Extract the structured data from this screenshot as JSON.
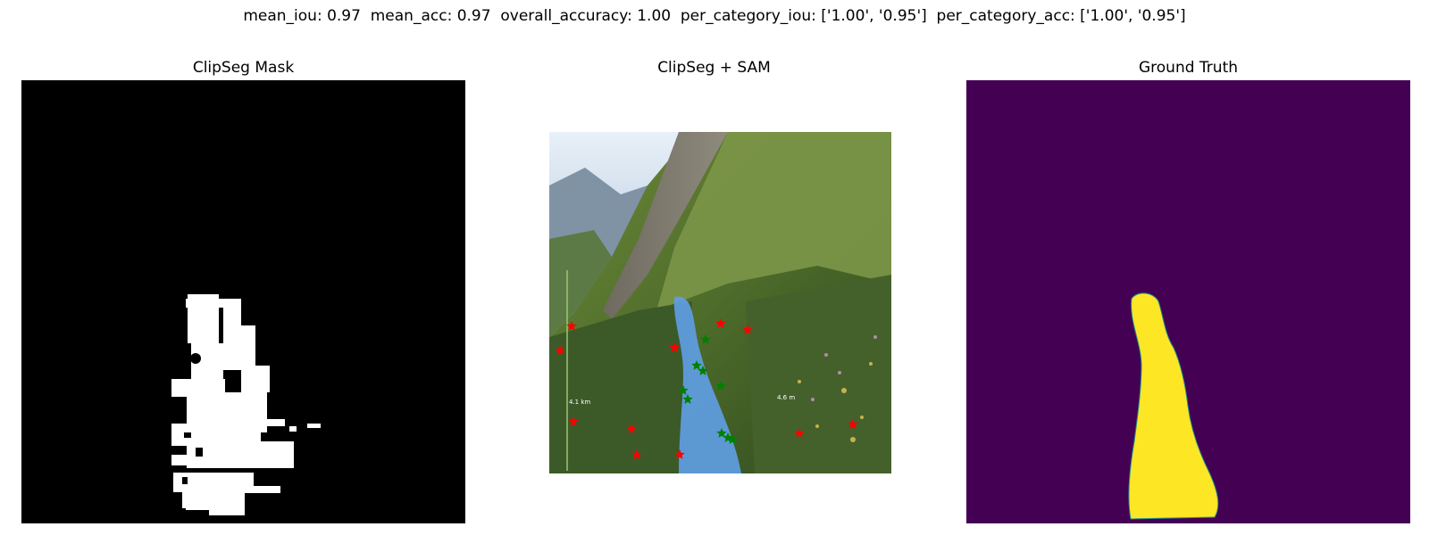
{
  "header": {
    "metrics": "mean_iou: 0.97  mean_acc: 0.97  overall_accuracy: 1.00  per_category_iou: ['1.00', '0.95']  per_category_acc: ['1.00', '0.95']"
  },
  "panels": [
    {
      "title": "ClipSeg Mask"
    },
    {
      "title": "ClipSeg + SAM"
    },
    {
      "title": "Ground Truth"
    }
  ],
  "photo": {
    "overlay_labels": [
      "4.1 km",
      "4.6 m"
    ]
  },
  "colors": {
    "mask_background": "#000000",
    "mask_foreground": "#ffffff",
    "sam_mask": "#5f9ee6",
    "positive_point": "#008000",
    "negative_point": "#ff0000",
    "gt_background": "#440154",
    "gt_foreground": "#fde725"
  }
}
